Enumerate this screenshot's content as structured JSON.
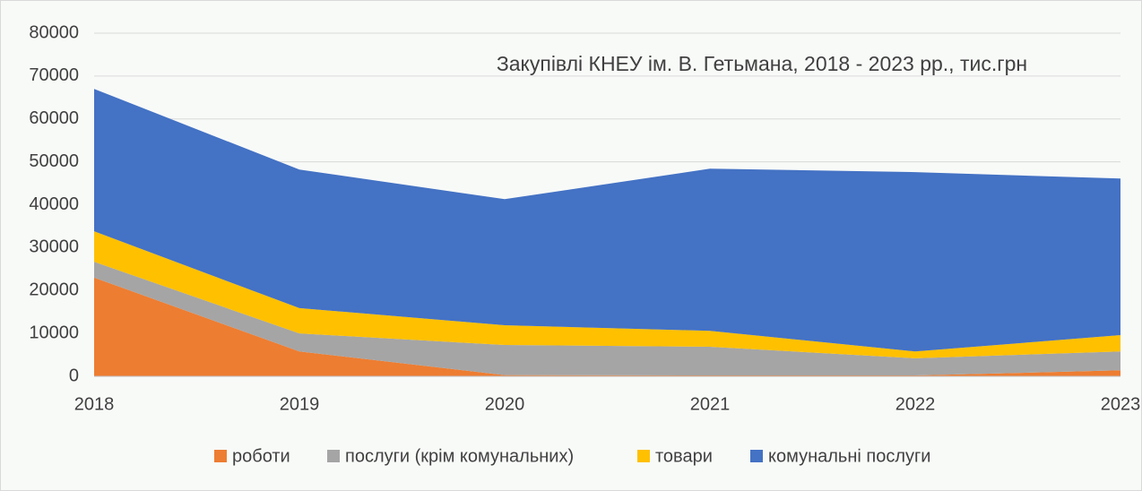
{
  "chart_data": {
    "type": "stacked_area",
    "title": "Закупівлі КНЕУ ім. В. Гетьмана, 2018 - 2023 рр., тис.грн",
    "x": [
      2018,
      2019,
      2020,
      2021,
      2022,
      2023
    ],
    "xlim": [
      2018,
      2023
    ],
    "xticks": [
      2018,
      2019,
      2020,
      2021,
      2022,
      2023
    ],
    "ylim": [
      0,
      80000
    ],
    "yticks": [
      0,
      10000,
      20000,
      30000,
      40000,
      50000,
      60000,
      70000,
      80000
    ],
    "grid": true,
    "legend": "bottom",
    "series": [
      {
        "name": "роботи",
        "color": "#ed7d31",
        "values": [
          23000,
          5800,
          300,
          200,
          200,
          1400
        ]
      },
      {
        "name": "послуги (крім комунальних)",
        "color": "#a5a5a5",
        "values": [
          3700,
          4200,
          7000,
          6700,
          4000,
          4400
        ]
      },
      {
        "name": "товари",
        "color": "#ffc000",
        "values": [
          7100,
          5900,
          4600,
          3700,
          1600,
          3800
        ]
      },
      {
        "name": "комунальні послуги",
        "color": "#4472c4",
        "values": [
          33200,
          32300,
          29400,
          37800,
          41800,
          36500
        ]
      }
    ]
  }
}
